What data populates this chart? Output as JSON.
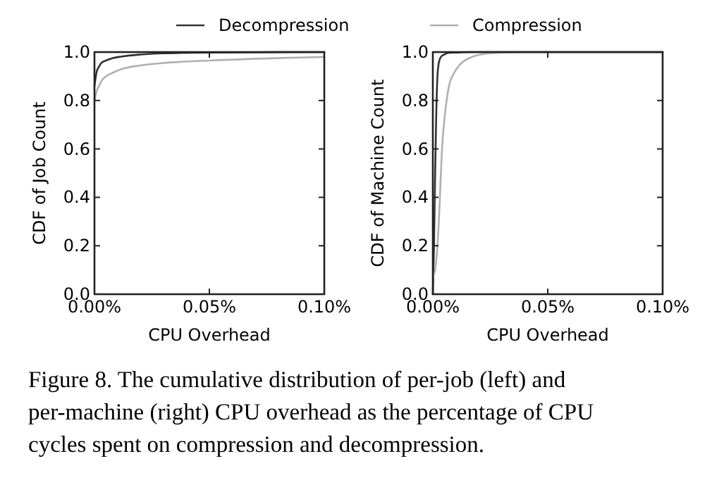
{
  "chart_data": [
    {
      "type": "line",
      "xlabel": "CPU Overhead",
      "ylabel": "CDF of Job Count",
      "x": [
        0,
        0.001,
        0.002,
        0.003,
        0.005,
        0.008,
        0.012,
        0.02,
        0.03,
        0.05,
        0.1
      ],
      "xlim": [
        0,
        0.1
      ],
      "ylim": [
        0,
        1
      ],
      "xticks": [
        {
          "value": 0,
          "label": "0.00%"
        },
        {
          "value": 0.05,
          "label": "0.05%"
        },
        {
          "value": 0.1,
          "label": "0.10%"
        }
      ],
      "yticks": [
        {
          "value": 0,
          "label": "0.0"
        },
        {
          "value": 0.2,
          "label": "0.2"
        },
        {
          "value": 0.4,
          "label": "0.4"
        },
        {
          "value": 0.6,
          "label": "0.6"
        },
        {
          "value": 0.8,
          "label": "0.8"
        },
        {
          "value": 1,
          "label": "1.0"
        }
      ],
      "legend": "top",
      "grid": false,
      "series": [
        {
          "name": "Decompression",
          "color": "#333333",
          "values": [
            0.86,
            0.92,
            0.94,
            0.955,
            0.965,
            0.975,
            0.982,
            0.99,
            0.995,
            0.998,
            1.0
          ]
        },
        {
          "name": "Compression",
          "color": "#b0b0b0",
          "values": [
            0.8,
            0.84,
            0.86,
            0.88,
            0.9,
            0.915,
            0.93,
            0.945,
            0.955,
            0.965,
            0.98
          ]
        }
      ],
      "annotations": [
        "Figure 8. The cumulative distribution of per-job (left) and per-machine (right) CPU overhead as the percentage of CPU cycles spent on compression and decompression."
      ]
    },
    {
      "type": "line",
      "xlabel": "CPU Overhead",
      "ylabel": "CDF of Machine Count",
      "x": [
        0,
        0.0005,
        0.001,
        0.0015,
        0.002,
        0.0025,
        0.003,
        0.0035,
        0.004,
        0.005,
        0.006,
        0.007,
        0.009,
        0.012,
        0.017,
        0.025,
        0.04,
        0.1
      ],
      "xlim": [
        0,
        0.1
      ],
      "ylim": [
        0,
        1
      ],
      "xticks": [
        {
          "value": 0,
          "label": "0.00%"
        },
        {
          "value": 0.05,
          "label": "0.05%"
        },
        {
          "value": 0.1,
          "label": "0.10%"
        }
      ],
      "yticks": [
        {
          "value": 0,
          "label": "0.0"
        },
        {
          "value": 0.2,
          "label": "0.2"
        },
        {
          "value": 0.4,
          "label": "0.4"
        },
        {
          "value": 0.6,
          "label": "0.6"
        },
        {
          "value": 0.8,
          "label": "0.8"
        },
        {
          "value": 1,
          "label": "1.0"
        }
      ],
      "grid": false,
      "series": [
        {
          "color": "#333333",
          "values": [
            0.0,
            0.2,
            0.5,
            0.75,
            0.9,
            0.95,
            0.97,
            0.98,
            0.985,
            0.99,
            0.995,
            0.997,
            0.998,
            0.999,
            1.0,
            1.0,
            1.0,
            1.0
          ]
        },
        {
          "color": "#b0b0b0",
          "values": [
            0.07,
            0.08,
            0.1,
            0.14,
            0.2,
            0.28,
            0.38,
            0.5,
            0.6,
            0.72,
            0.8,
            0.86,
            0.91,
            0.95,
            0.98,
            0.995,
            1.0,
            1.0
          ]
        }
      ]
    }
  ]
}
